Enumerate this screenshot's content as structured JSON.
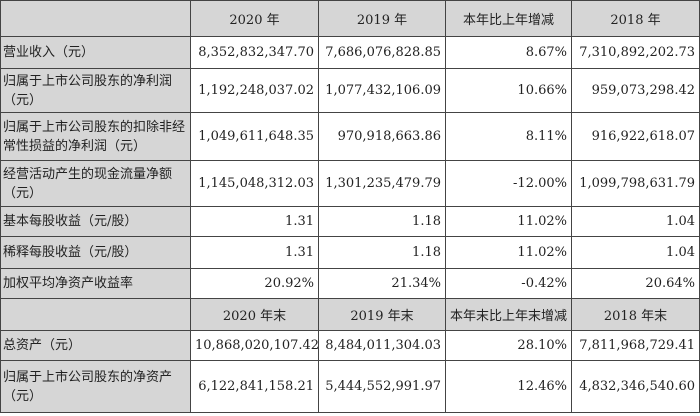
{
  "header1": [
    "",
    "2020 年",
    "2019 年",
    "本年比上年增减",
    "2018 年"
  ],
  "rows1": [
    {
      "label": "营业收入（元）",
      "values": [
        "8,352,832,347.70",
        "7,686,076,828.85",
        "8.67%",
        "7,310,892,202.73"
      ]
    },
    {
      "label": "归属于上市公司股东的净利润（元）",
      "values": [
        "1,192,248,037.02",
        "1,077,432,106.09",
        "10.66%",
        "959,073,298.42"
      ]
    },
    {
      "label": "归属于上市公司股东的扣除非经常性损益的净利润（元）",
      "values": [
        "1,049,611,648.35",
        "970,918,663.86",
        "8.11%",
        "916,922,618.07"
      ]
    },
    {
      "label": "经营活动产生的现金流量净额（元）",
      "values": [
        "1,145,048,312.03",
        "1,301,235,479.79",
        "-12.00%",
        "1,099,798,631.79"
      ]
    },
    {
      "label": "基本每股收益（元/股）",
      "values": [
        "1.31",
        "1.18",
        "11.02%",
        "1.04"
      ]
    },
    {
      "label": "稀释每股收益（元/股）",
      "values": [
        "1.31",
        "1.18",
        "11.02%",
        "1.04"
      ]
    },
    {
      "label": "加权平均净资产收益率",
      "values": [
        "20.92%",
        "21.34%",
        "-0.42%",
        "20.64%"
      ]
    }
  ],
  "header2": [
    "",
    "2020 年末",
    "2019 年末",
    "本年末比上年末增减",
    "2018 年末"
  ],
  "rows2": [
    {
      "label": "总资产（元）",
      "values": [
        "10,868,020,107.42",
        "8,484,011,304.03",
        "28.10%",
        "7,811,968,729.41"
      ]
    },
    {
      "label": "归属于上市公司股东的净资产（元）",
      "values": [
        "6,122,841,158.21",
        "5,444,552,991.97",
        "12.46%",
        "4,832,346,540.60"
      ]
    }
  ]
}
